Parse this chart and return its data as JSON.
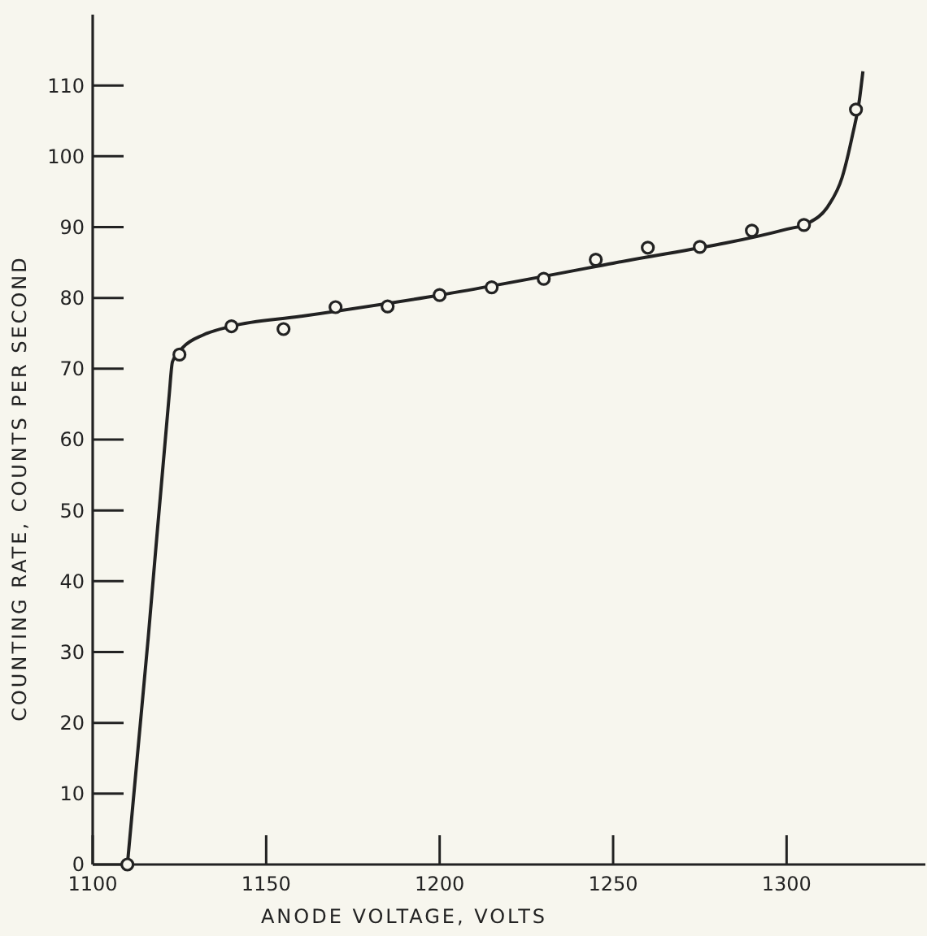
{
  "chart_data": {
    "type": "scatter",
    "xlabel": "ANODE VOLTAGE, VOLTS",
    "ylabel": "COUNTING RATE, COUNTS PER SECOND",
    "xlim": [
      1100,
      1340
    ],
    "ylim": [
      0,
      120
    ],
    "xticks": [
      1100,
      1150,
      1200,
      1250,
      1300
    ],
    "yticks": [
      0,
      10,
      20,
      30,
      40,
      50,
      60,
      70,
      80,
      90,
      100,
      110
    ],
    "grid": false,
    "series": [
      {
        "type": "line",
        "color": "#222222",
        "marker": "none",
        "line_style": "solid",
        "x": [
          1110,
          1116,
          1122,
          1123,
          1126,
          1132,
          1140,
          1160,
          1200,
          1250,
          1300,
          1306,
          1312,
          1316,
          1319,
          1321,
          1322
        ],
        "values": [
          0,
          32,
          66,
          71,
          73,
          74.8,
          76,
          77.4,
          80.4,
          84.9,
          89.7,
          90.5,
          93,
          97,
          103,
          108,
          112
        ]
      },
      {
        "color": "#222222",
        "marker": "circle",
        "x": [
          1110,
          1125,
          1140,
          1155,
          1170,
          1185,
          1200,
          1215,
          1230,
          1245,
          1260,
          1275,
          1290,
          1305,
          1320
        ],
        "values": [
          0,
          72,
          76,
          75.6,
          78.7,
          78.8,
          80.4,
          81.5,
          82.7,
          85.4,
          87.1,
          87.2,
          89.5,
          90.3,
          106.6
        ]
      }
    ]
  }
}
